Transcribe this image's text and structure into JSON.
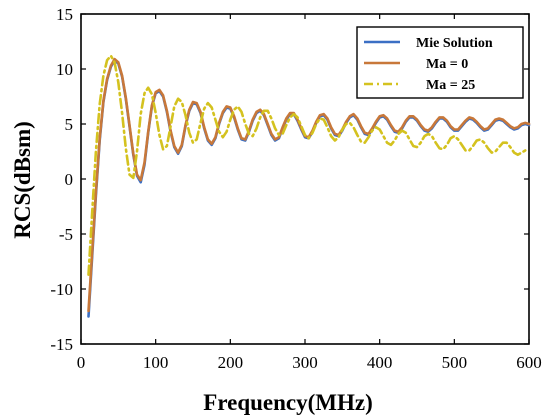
{
  "chart_data": {
    "type": "line",
    "xlabel": "Frequency(MHz)",
    "ylabel": "RCS(dBsm)",
    "xlim": [
      0,
      600
    ],
    "ylim": [
      -15,
      15
    ],
    "xticks": [
      0,
      100,
      200,
      300,
      400,
      500,
      600
    ],
    "yticks": [
      -15,
      -10,
      -5,
      0,
      5,
      10,
      15
    ],
    "grid": false,
    "legend_position": "top-right",
    "series": [
      {
        "name": "Mie Solution",
        "color": "#3b6fc4",
        "style": "solid",
        "x": [
          10,
          15,
          20,
          25,
          30,
          35,
          40,
          45,
          50,
          55,
          60,
          65,
          70,
          75,
          80,
          85,
          90,
          95,
          100,
          105,
          110,
          115,
          120,
          125,
          130,
          135,
          140,
          145,
          150,
          155,
          160,
          165,
          170,
          175,
          180,
          185,
          190,
          195,
          200,
          205,
          210,
          215,
          220,
          225,
          230,
          235,
          240,
          245,
          250,
          255,
          260,
          265,
          270,
          275,
          280,
          285,
          290,
          295,
          300,
          305,
          310,
          315,
          320,
          325,
          330,
          335,
          340,
          345,
          350,
          355,
          360,
          365,
          370,
          375,
          380,
          385,
          390,
          395,
          400,
          405,
          410,
          415,
          420,
          425,
          430,
          435,
          440,
          445,
          450,
          455,
          460,
          465,
          470,
          475,
          480,
          485,
          490,
          495,
          500,
          505,
          510,
          515,
          520,
          525,
          530,
          535,
          540,
          545,
          550,
          555,
          560,
          565,
          570,
          575,
          580,
          585,
          590,
          595,
          600
        ],
        "values": [
          -12.5,
          -7.0,
          -1.5,
          3.5,
          7.0,
          9.0,
          10.2,
          10.8,
          10.5,
          9.3,
          7.3,
          4.8,
          2.2,
          0.3,
          -0.3,
          1.3,
          4.2,
          6.6,
          7.8,
          8.0,
          7.5,
          6.1,
          4.3,
          2.9,
          2.3,
          3.0,
          4.8,
          6.2,
          6.9,
          6.8,
          6.0,
          4.6,
          3.5,
          3.1,
          3.7,
          5.0,
          6.0,
          6.5,
          6.4,
          5.6,
          4.5,
          3.6,
          3.5,
          4.3,
          5.3,
          6.0,
          6.2,
          5.8,
          4.9,
          4.0,
          3.5,
          3.7,
          4.6,
          5.4,
          5.9,
          5.9,
          5.3,
          4.5,
          3.8,
          3.7,
          4.3,
          5.1,
          5.7,
          5.8,
          5.4,
          4.6,
          4.0,
          3.9,
          4.4,
          5.1,
          5.6,
          5.8,
          5.4,
          4.7,
          4.1,
          4.0,
          4.5,
          5.1,
          5.6,
          5.7,
          5.4,
          4.8,
          4.3,
          4.2,
          4.6,
          5.2,
          5.6,
          5.6,
          5.3,
          4.8,
          4.4,
          4.3,
          4.6,
          5.1,
          5.5,
          5.5,
          5.2,
          4.7,
          4.4,
          4.4,
          4.8,
          5.2,
          5.5,
          5.4,
          5.1,
          4.7,
          4.4,
          4.5,
          4.9,
          5.3,
          5.4,
          5.3,
          5.0,
          4.7,
          4.5,
          4.6,
          4.9,
          5.0,
          4.9
        ]
      },
      {
        "name": "Ma = 0",
        "color": "#c8783a",
        "style": "solid",
        "x": [
          10,
          15,
          20,
          25,
          30,
          35,
          40,
          45,
          50,
          55,
          60,
          65,
          70,
          75,
          80,
          85,
          90,
          95,
          100,
          105,
          110,
          115,
          120,
          125,
          130,
          135,
          140,
          145,
          150,
          155,
          160,
          165,
          170,
          175,
          180,
          185,
          190,
          195,
          200,
          205,
          210,
          215,
          220,
          225,
          230,
          235,
          240,
          245,
          250,
          255,
          260,
          265,
          270,
          275,
          280,
          285,
          290,
          295,
          300,
          305,
          310,
          315,
          320,
          325,
          330,
          335,
          340,
          345,
          350,
          355,
          360,
          365,
          370,
          375,
          380,
          385,
          390,
          395,
          400,
          405,
          410,
          415,
          420,
          425,
          430,
          435,
          440,
          445,
          450,
          455,
          460,
          465,
          470,
          475,
          480,
          485,
          490,
          495,
          500,
          505,
          510,
          515,
          520,
          525,
          530,
          535,
          540,
          545,
          550,
          555,
          560,
          565,
          570,
          575,
          580,
          585,
          590,
          595,
          600
        ],
        "values": [
          -12.0,
          -6.6,
          -1.2,
          3.7,
          7.1,
          9.1,
          10.3,
          10.9,
          10.6,
          9.4,
          7.4,
          4.9,
          2.3,
          0.4,
          -0.1,
          1.5,
          4.3,
          6.7,
          7.9,
          8.1,
          7.6,
          6.2,
          4.4,
          3.0,
          2.4,
          3.1,
          4.9,
          6.3,
          7.0,
          6.9,
          6.1,
          4.7,
          3.6,
          3.2,
          3.8,
          5.1,
          6.1,
          6.6,
          6.5,
          5.7,
          4.6,
          3.7,
          3.6,
          4.4,
          5.4,
          6.1,
          6.3,
          5.9,
          5.0,
          4.1,
          3.6,
          3.8,
          4.7,
          5.5,
          6.0,
          6.0,
          5.4,
          4.6,
          3.9,
          3.8,
          4.4,
          5.2,
          5.8,
          5.9,
          5.5,
          4.7,
          4.1,
          4.0,
          4.5,
          5.2,
          5.7,
          5.9,
          5.5,
          4.8,
          4.2,
          4.1,
          4.6,
          5.2,
          5.7,
          5.8,
          5.5,
          4.9,
          4.4,
          4.3,
          4.7,
          5.3,
          5.7,
          5.7,
          5.4,
          4.9,
          4.5,
          4.4,
          4.7,
          5.2,
          5.6,
          5.6,
          5.3,
          4.8,
          4.5,
          4.5,
          4.9,
          5.3,
          5.6,
          5.5,
          5.2,
          4.8,
          4.5,
          4.6,
          5.0,
          5.4,
          5.5,
          5.4,
          5.1,
          4.8,
          4.6,
          4.7,
          5.0,
          5.1,
          5.0
        ]
      },
      {
        "name": "Ma = 25",
        "color": "#d4c21f",
        "style": "dashdot",
        "x": [
          10,
          15,
          20,
          25,
          30,
          35,
          40,
          45,
          50,
          55,
          60,
          65,
          70,
          75,
          80,
          85,
          90,
          95,
          100,
          105,
          110,
          115,
          120,
          125,
          130,
          135,
          140,
          145,
          150,
          155,
          160,
          165,
          170,
          175,
          180,
          185,
          190,
          195,
          200,
          205,
          210,
          215,
          220,
          225,
          230,
          235,
          240,
          245,
          250,
          255,
          260,
          265,
          270,
          275,
          280,
          285,
          290,
          295,
          300,
          305,
          310,
          315,
          320,
          325,
          330,
          335,
          340,
          345,
          350,
          355,
          360,
          365,
          370,
          375,
          380,
          385,
          390,
          395,
          400,
          405,
          410,
          415,
          420,
          425,
          430,
          435,
          440,
          445,
          450,
          455,
          460,
          465,
          470,
          475,
          480,
          485,
          490,
          495,
          500,
          505,
          510,
          515,
          520,
          525,
          530,
          535,
          540,
          545,
          550,
          555,
          560,
          565,
          570,
          575,
          580,
          585,
          590,
          595,
          600
        ],
        "values": [
          -8.7,
          -3.0,
          2.5,
          6.8,
          9.4,
          10.8,
          11.2,
          10.6,
          8.8,
          6.0,
          2.8,
          0.4,
          0.1,
          2.5,
          5.9,
          7.8,
          8.3,
          7.7,
          6.0,
          4.0,
          2.7,
          3.0,
          4.8,
          6.6,
          7.3,
          7.0,
          5.8,
          4.2,
          3.3,
          3.6,
          5.1,
          6.4,
          6.9,
          6.5,
          5.4,
          4.3,
          3.8,
          4.3,
          5.4,
          6.3,
          6.6,
          6.1,
          5.0,
          4.1,
          3.9,
          4.6,
          5.6,
          6.2,
          6.2,
          5.5,
          4.6,
          4.0,
          4.1,
          4.9,
          5.6,
          5.9,
          5.6,
          4.8,
          4.0,
          3.7,
          4.2,
          5.0,
          5.5,
          5.4,
          4.7,
          3.9,
          3.5,
          3.8,
          4.5,
          5.0,
          5.1,
          4.7,
          4.0,
          3.4,
          3.3,
          3.8,
          4.4,
          4.7,
          4.5,
          3.9,
          3.3,
          3.1,
          3.5,
          4.1,
          4.4,
          4.2,
          3.6,
          3.0,
          2.9,
          3.3,
          3.9,
          4.1,
          3.9,
          3.3,
          2.8,
          2.7,
          3.1,
          3.7,
          3.9,
          3.6,
          3.1,
          2.6,
          2.6,
          3.0,
          3.5,
          3.6,
          3.3,
          2.8,
          2.4,
          2.5,
          2.9,
          3.3,
          3.3,
          2.9,
          2.4,
          2.2,
          2.4,
          2.6,
          2.5
        ]
      }
    ]
  }
}
